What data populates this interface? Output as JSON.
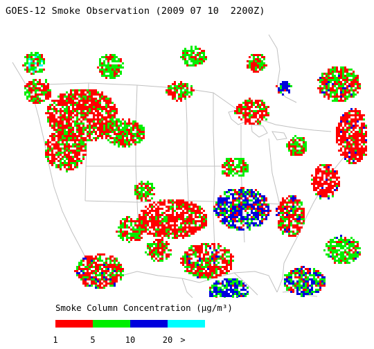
{
  "title": "GOES-12 Smoke Observation (2009 07 10  2200Z)",
  "legend": {
    "title": "Smoke Column Concentration (µg/m³)",
    "bins": [
      {
        "label": "1",
        "color": "#ff0000"
      },
      {
        "label": "5",
        "color": "#00ee00"
      },
      {
        "label": "10",
        "color": "#0000dd"
      },
      {
        "label": "20",
        "color": "#00ffff"
      }
    ],
    "overflow_label": ">"
  },
  "colors": {
    "basemap": "#c0c0c0",
    "background": "#ffffff"
  }
}
